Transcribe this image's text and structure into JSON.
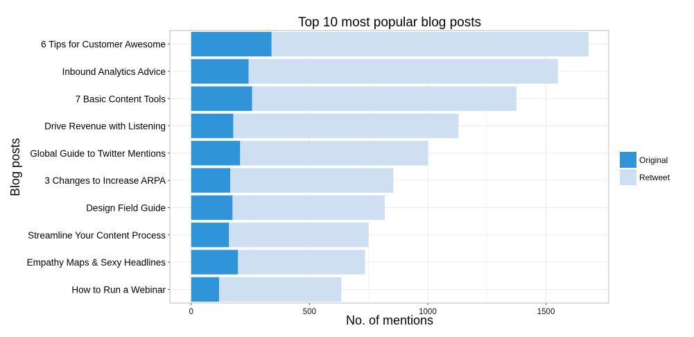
{
  "chart_data": {
    "type": "bar",
    "orientation": "horizontal",
    "stacked": true,
    "title": "Top 10 most popular blog posts",
    "xlabel": "No. of mentions",
    "ylabel": "Blog posts",
    "xlim": [
      -90,
      1765
    ],
    "xticks": [
      0,
      500,
      1000,
      1500
    ],
    "grid": true,
    "legend_position": "right",
    "categories": [
      "6 Tips for Customer Awesome",
      "Inbound Analytics Advice",
      "7 Basic Content Tools",
      "Drive Revenue with Listening",
      "Global Guide to Twitter Mentions",
      "3 Changes to Increase ARPA",
      "Design Field Guide",
      "Streamline Your Content Process",
      "Empathy Maps & Sexy Headlines",
      "How to Run a Webinar"
    ],
    "series": [
      {
        "name": "Original",
        "color": "#2f94d8",
        "values": [
          340,
          243,
          258,
          178,
          207,
          165,
          175,
          160,
          198,
          118
        ]
      },
      {
        "name": "Retweet",
        "color": "#cddff1",
        "values": [
          1340,
          1307,
          1117,
          952,
          795,
          690,
          643,
          590,
          537,
          517
        ]
      }
    ]
  }
}
